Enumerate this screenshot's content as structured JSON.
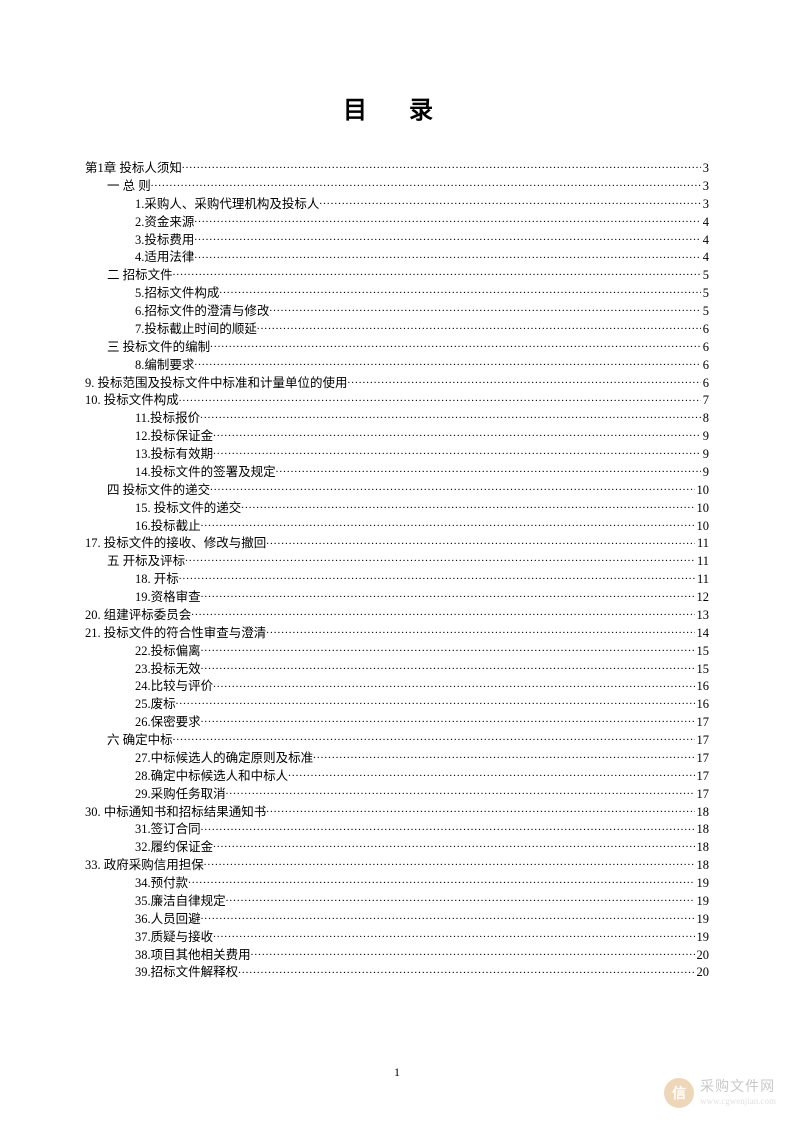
{
  "title": "目 录",
  "page_number": "1",
  "typography": {
    "title_fontsize": 24,
    "body_fontsize": 12.5,
    "font_family": "SimSun",
    "text_color": "#000000",
    "background_color": "#ffffff"
  },
  "entries": [
    {
      "label": "第1章 投标人须知",
      "page": "3",
      "indent": 0
    },
    {
      "label": "一    总   则",
      "page": "3",
      "indent": 1
    },
    {
      "label": "1.采购人、采购代理机构及投标人",
      "page": "3",
      "indent": 2
    },
    {
      "label": "2.资金来源",
      "page": "4",
      "indent": 2
    },
    {
      "label": "3.投标费用",
      "page": "4",
      "indent": 2
    },
    {
      "label": "4.适用法律",
      "page": "4",
      "indent": 2
    },
    {
      "label": "二    招标文件",
      "page": "5",
      "indent": 1
    },
    {
      "label": "5.招标文件构成",
      "page": "5",
      "indent": 2
    },
    {
      "label": "6.招标文件的澄清与修改",
      "page": "5",
      "indent": 2
    },
    {
      "label": "7.投标截止时间的顺延",
      "page": "6",
      "indent": 2
    },
    {
      "label": "三    投标文件的编制",
      "page": "6",
      "indent": 1
    },
    {
      "label": "8.编制要求",
      "page": "6",
      "indent": 2
    },
    {
      "label": "9.         投标范围及投标文件中标准和计量单位的使用",
      "page": "6",
      "indent": 0
    },
    {
      "label": "10.         投标文件构成",
      "page": "7",
      "indent": 0
    },
    {
      "label": "11.投标报价",
      "page": "8",
      "indent": 2
    },
    {
      "label": "12.投标保证金",
      "page": "9",
      "indent": 2
    },
    {
      "label": "13.投标有效期",
      "page": "9",
      "indent": 2
    },
    {
      "label": "14.投标文件的签署及规定",
      "page": "9",
      "indent": 2
    },
    {
      "label": "四    投标文件的递交",
      "page": "10",
      "indent": 1
    },
    {
      "label": "15.    投标文件的递交",
      "page": "10",
      "indent": 2
    },
    {
      "label": "16.投标截止",
      "page": "10",
      "indent": 2
    },
    {
      "label": "17.         投标文件的接收、修改与撤回",
      "page": "11",
      "indent": 0
    },
    {
      "label": "五    开标及评标",
      "page": "11",
      "indent": 1
    },
    {
      "label": "18.  开标",
      "page": "11",
      "indent": 2
    },
    {
      "label": "19.资格审查",
      "page": "12",
      "indent": 2
    },
    {
      "label": "20.         组建评标委员会",
      "page": "13",
      "indent": 0
    },
    {
      "label": "21.         投标文件的符合性审查与澄清",
      "page": "14",
      "indent": 0
    },
    {
      "label": "22.投标偏离",
      "page": "15",
      "indent": 2
    },
    {
      "label": "23.投标无效",
      "page": "15",
      "indent": 2
    },
    {
      "label": "24.比较与评价",
      "page": "16",
      "indent": 2
    },
    {
      "label": "25.废标",
      "page": "16",
      "indent": 2
    },
    {
      "label": "26.保密要求",
      "page": "17",
      "indent": 2
    },
    {
      "label": "六    确定中标",
      "page": "17",
      "indent": 1
    },
    {
      "label": "27.中标候选人的确定原则及标准",
      "page": "17",
      "indent": 2
    },
    {
      "label": "28.确定中标候选人和中标人",
      "page": "17",
      "indent": 2
    },
    {
      "label": "29.采购任务取消",
      "page": "17",
      "indent": 2
    },
    {
      "label": "30.           中标通知书和招标结果通知书",
      "page": "18",
      "indent": 0
    },
    {
      "label": "31.签订合同",
      "page": "18",
      "indent": 2
    },
    {
      "label": "32.履约保证金",
      "page": "18",
      "indent": 2
    },
    {
      "label": "33.         政府采购信用担保",
      "page": "18",
      "indent": 0
    },
    {
      "label": "34.预付款",
      "page": "19",
      "indent": 2
    },
    {
      "label": "35.廉洁自律规定",
      "page": "19",
      "indent": 2
    },
    {
      "label": "36.人员回避",
      "page": "19",
      "indent": 2
    },
    {
      "label": "37.质疑与接收",
      "page": "19",
      "indent": 2
    },
    {
      "label": "38.项目其他相关费用",
      "page": "20",
      "indent": 2
    },
    {
      "label": "39.招标文件解释权",
      "page": "20",
      "indent": 2
    }
  ],
  "watermark": {
    "icon_text": "信",
    "text_cn": "采购文件网",
    "text_url": "www.cgwenjian.com",
    "icon_color": "#d9a864"
  }
}
